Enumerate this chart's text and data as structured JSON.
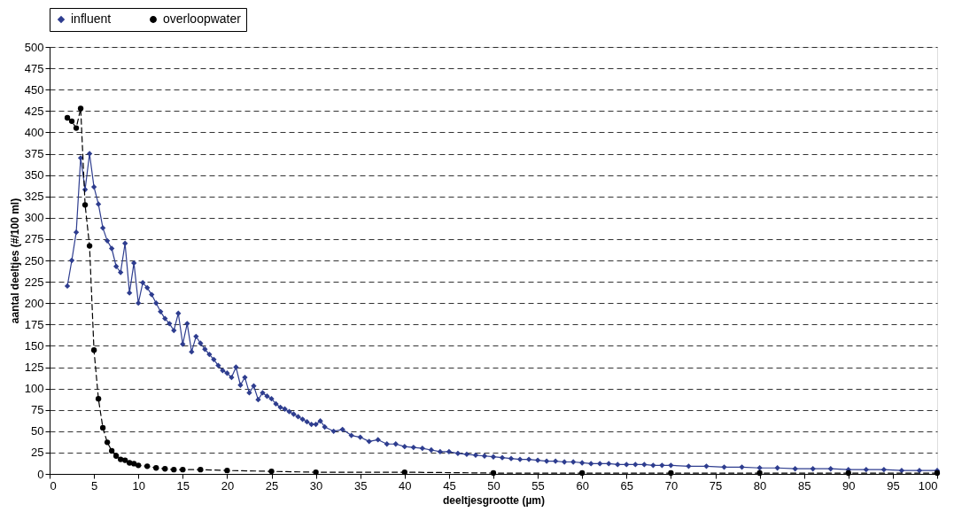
{
  "chart_data": {
    "type": "line",
    "xlabel": "deeltjesgrootte (µm)",
    "ylabel": "aantal deeltjes (#/100 ml)",
    "xlim": [
      0,
      100
    ],
    "xticks": [
      0,
      5,
      10,
      15,
      20,
      25,
      30,
      35,
      40,
      45,
      50,
      55,
      60,
      65,
      70,
      75,
      80,
      85,
      90,
      95,
      100
    ],
    "ylim": [
      0,
      500
    ],
    "yticks": [
      0,
      25,
      50,
      75,
      100,
      125,
      150,
      175,
      200,
      225,
      250,
      275,
      300,
      325,
      350,
      375,
      400,
      425,
      450,
      475,
      500
    ],
    "grid": "y",
    "legend": "top",
    "series": [
      {
        "name": "influent",
        "color": "#2e3d8f",
        "marker": "diamond",
        "line_style": "solid",
        "x": [
          2,
          2.5,
          3,
          3.5,
          4,
          4.5,
          5,
          5.5,
          6,
          6.5,
          7,
          7.5,
          8,
          8.5,
          9,
          9.5,
          10,
          10.5,
          11,
          11.5,
          12,
          12.5,
          13,
          13.5,
          14,
          14.5,
          15,
          15.5,
          16,
          16.5,
          17,
          17.5,
          18,
          18.5,
          19,
          19.5,
          20,
          20.5,
          21,
          21.5,
          22,
          22.5,
          23,
          23.5,
          24,
          24.5,
          25,
          25.5,
          26,
          26.5,
          27,
          27.5,
          28,
          28.5,
          29,
          29.5,
          30,
          30.5,
          31,
          32,
          33,
          34,
          35,
          36,
          37,
          38,
          39,
          40,
          41,
          42,
          43,
          44,
          45,
          46,
          47,
          48,
          49,
          50,
          51,
          52,
          53,
          54,
          55,
          56,
          57,
          58,
          59,
          60,
          61,
          62,
          63,
          64,
          65,
          66,
          67,
          68,
          69,
          70,
          72,
          74,
          76,
          78,
          80,
          82,
          84,
          86,
          88,
          90,
          92,
          94,
          96,
          98,
          100
        ],
        "values": [
          220,
          250,
          283,
          370,
          333,
          375,
          336,
          316,
          288,
          273,
          264,
          243,
          236,
          270,
          212,
          247,
          200,
          224,
          218,
          210,
          200,
          190,
          182,
          176,
          168,
          188,
          152,
          176,
          143,
          161,
          153,
          146,
          140,
          134,
          127,
          121,
          118,
          113,
          125,
          104,
          113,
          95,
          103,
          87,
          95,
          91,
          88,
          82,
          78,
          76,
          73,
          70,
          67,
          64,
          61,
          58,
          58,
          62,
          55,
          50,
          52,
          45,
          43,
          38,
          40,
          35,
          35,
          32,
          31,
          30,
          28,
          26,
          26,
          24,
          23,
          22,
          21,
          20,
          19,
          18,
          17,
          17,
          16,
          15,
          15,
          14,
          14,
          13,
          12,
          12,
          12,
          11,
          11,
          11,
          11,
          10,
          10,
          10,
          9,
          9,
          8,
          8,
          7,
          7,
          6,
          6,
          6,
          5,
          5,
          5,
          4,
          4,
          4
        ]
      },
      {
        "name": "overloopwater",
        "color": "#000000",
        "marker": "circle",
        "line_style": "dashed",
        "x": [
          2,
          2.5,
          3,
          3.5,
          4,
          4.5,
          5,
          5.5,
          6,
          6.5,
          7,
          7.5,
          8,
          8.5,
          9,
          9.5,
          10,
          11,
          12,
          13,
          14,
          15,
          17,
          20,
          25,
          30,
          40,
          50,
          60,
          70,
          80,
          90,
          100
        ],
        "values": [
          417,
          413,
          405,
          428,
          315,
          267,
          145,
          88,
          54,
          37,
          27,
          21,
          17,
          16,
          13,
          12,
          10,
          9,
          7,
          6,
          5,
          5,
          5,
          4,
          3,
          2,
          2,
          1,
          1,
          1,
          1,
          1,
          1
        ]
      }
    ]
  }
}
